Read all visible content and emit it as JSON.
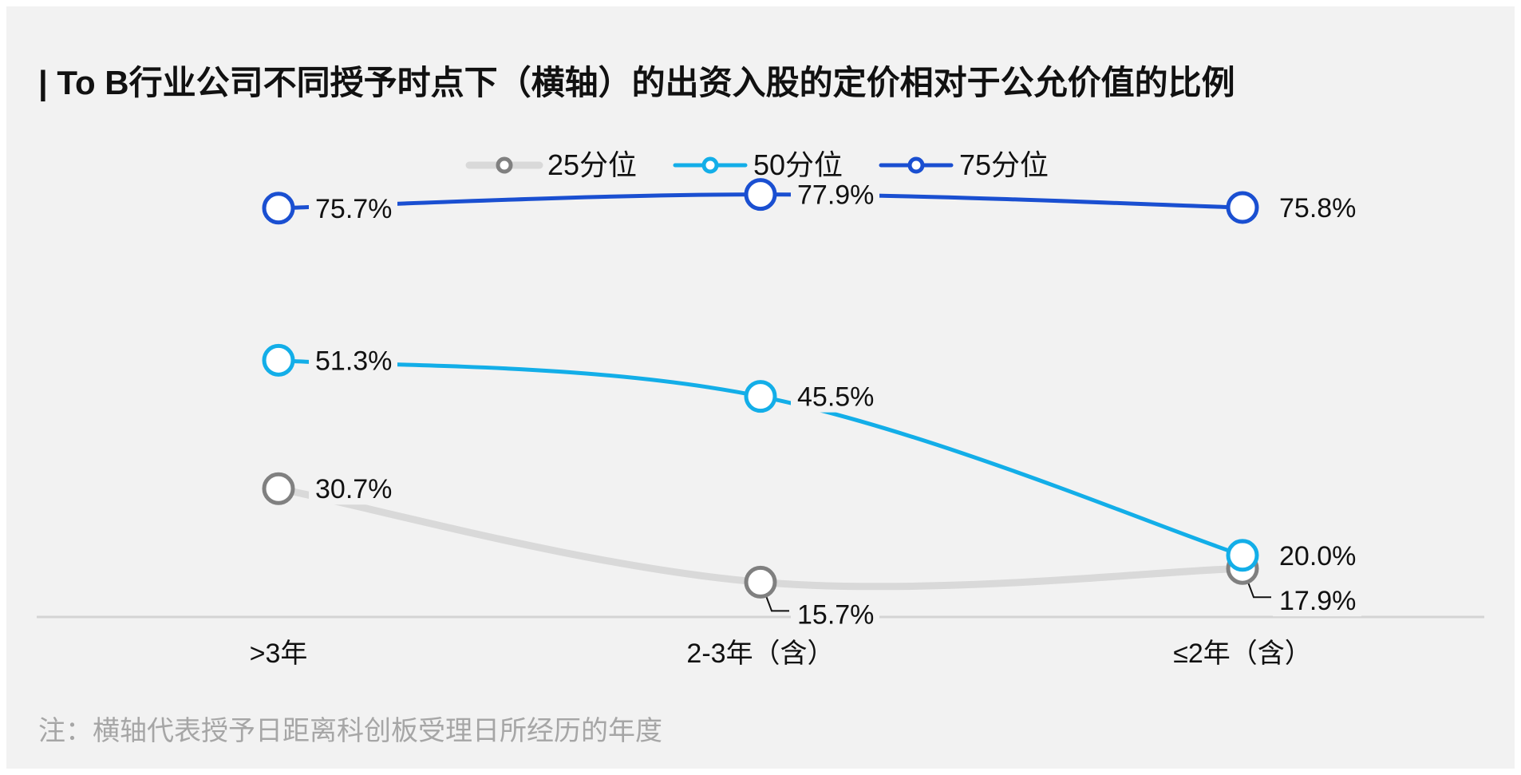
{
  "title": "| To B行业公司不同授予时点下（横轴）的出资入股的定价相对于公允价值的比例",
  "footnote": "注：横轴代表授予日距离科创板受理日所经历的年度",
  "colors": {
    "background": "#f2f2f2",
    "p25_line": "#d9d9d9",
    "p25_marker": "#808080",
    "p50": "#13aee8",
    "p75": "#1a4fd1",
    "axis": "#d4d4d4"
  },
  "chart_data": {
    "type": "line",
    "categories": [
      ">3年",
      "2-3年（含）",
      "≤2年（含）"
    ],
    "series": [
      {
        "name": "25分位",
        "values": [
          30.7,
          15.7,
          17.9
        ],
        "labels": [
          "30.7%",
          "15.7%",
          "17.9%"
        ]
      },
      {
        "name": "50分位",
        "values": [
          51.3,
          45.5,
          20.0
        ],
        "labels": [
          "51.3%",
          "45.5%",
          "20.0%"
        ]
      },
      {
        "name": "75分位",
        "values": [
          75.7,
          77.9,
          75.8
        ],
        "labels": [
          "75.7%",
          "77.9%",
          "75.8%"
        ]
      }
    ],
    "legend_position": "top-center",
    "grid": false,
    "xlabel": "",
    "ylabel": ""
  }
}
